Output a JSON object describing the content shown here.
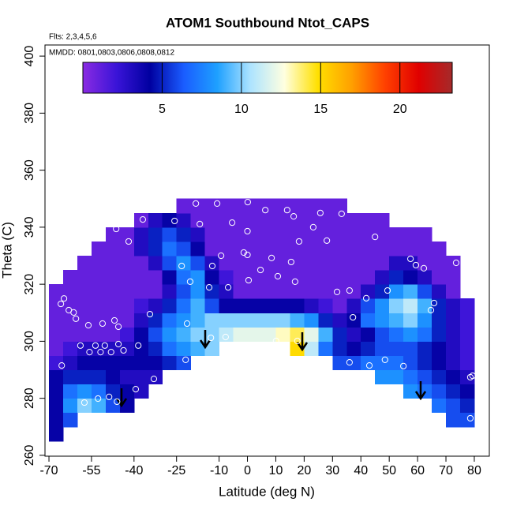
{
  "chart_data": {
    "type": "heatmap",
    "title": "ATOM1 Southbound Ntot_CAPS",
    "annotations": [
      "Flts: 2,3,4,5,6",
      "MMDD: 0801,0803,0806,0808,0812"
    ],
    "xlabel": "Latitude (deg N)",
    "ylabel": "Theta (C)",
    "xlim": [
      -71.4,
      85.3
    ],
    "ylim": [
      259.7,
      403.9
    ],
    "xticks": [
      -70,
      -55,
      -40,
      -25,
      -10,
      0,
      10,
      20,
      30,
      40,
      50,
      60,
      70,
      80
    ],
    "yticks": [
      260,
      280,
      300,
      320,
      340,
      360,
      380,
      400
    ],
    "x": [
      -67.5,
      -62.5,
      -57.5,
      -52.5,
      -47.5,
      -42.5,
      -37.5,
      -32.5,
      -27.5,
      -22.5,
      -17.5,
      -12.5,
      -7.5,
      -2.5,
      2.5,
      7.5,
      12.5,
      17.5,
      22.5,
      27.5,
      32.5,
      37.5,
      42.5,
      47.5,
      52.5,
      57.5,
      62.5,
      67.5,
      72.5,
      77.5
    ],
    "y": [
      267.5,
      272.5,
      277.5,
      282.5,
      287.5,
      292.5,
      297.5,
      302.5,
      307.5,
      312.5,
      317.5,
      322.5,
      327.5,
      332.5,
      337.5,
      342.5,
      347.5
    ],
    "z": [
      [
        4,
        null,
        null,
        null,
        null,
        null,
        null,
        null,
        null,
        null,
        null,
        null,
        null,
        null,
        null,
        null,
        null,
        null,
        null,
        null,
        null,
        null,
        null,
        null,
        null,
        null,
        null,
        null,
        null,
        null
      ],
      [
        4,
        6,
        null,
        null,
        null,
        null,
        null,
        null,
        null,
        null,
        null,
        null,
        null,
        null,
        null,
        null,
        null,
        null,
        null,
        null,
        null,
        null,
        null,
        null,
        null,
        null,
        null,
        null,
        6,
        6
      ],
      [
        4,
        8,
        10,
        9,
        6,
        4,
        null,
        null,
        null,
        null,
        null,
        null,
        null,
        null,
        null,
        null,
        null,
        null,
        null,
        null,
        null,
        null,
        null,
        null,
        null,
        null,
        null,
        7,
        6,
        5
      ],
      [
        4,
        7,
        8,
        7,
        5,
        4,
        3,
        null,
        null,
        null,
        null,
        null,
        null,
        null,
        null,
        null,
        null,
        null,
        null,
        null,
        null,
        null,
        null,
        null,
        null,
        8,
        7,
        6,
        5,
        4
      ],
      [
        4,
        5,
        5,
        5,
        4,
        3,
        3,
        3,
        null,
        null,
        null,
        null,
        null,
        null,
        null,
        null,
        null,
        null,
        null,
        null,
        null,
        null,
        null,
        8,
        8,
        7,
        6,
        5,
        4,
        3
      ],
      [
        2,
        3,
        4,
        4,
        4,
        4,
        4,
        4,
        5,
        6,
        null,
        null,
        null,
        null,
        null,
        null,
        null,
        null,
        null,
        null,
        6,
        6,
        7,
        7,
        7,
        6,
        5,
        4,
        3,
        2
      ],
      [
        1,
        2,
        3,
        3,
        3,
        3,
        4,
        5,
        7,
        8,
        9,
        10,
        null,
        null,
        null,
        null,
        null,
        15,
        11,
        7,
        5,
        4,
        5,
        6,
        6,
        6,
        5,
        4,
        3,
        2
      ],
      [
        1,
        1,
        1,
        1,
        1,
        2,
        4,
        6,
        8,
        9,
        10,
        10,
        11,
        12,
        12,
        12,
        13,
        14,
        12,
        9,
        5,
        3,
        4,
        6,
        7,
        8,
        7,
        5,
        3,
        2
      ],
      [
        1,
        1,
        1,
        1,
        1,
        1,
        3,
        5,
        7,
        8,
        9,
        10,
        10,
        10,
        10,
        10,
        10,
        9,
        8,
        5,
        3,
        4,
        7,
        8,
        9,
        10,
        8,
        5,
        3,
        2
      ],
      [
        1,
        1,
        1,
        1,
        1,
        1,
        2,
        3,
        5,
        7,
        9,
        6,
        4,
        4,
        4,
        4,
        4,
        4,
        3,
        2,
        1,
        3,
        6,
        8,
        10,
        11,
        9,
        5,
        3,
        2
      ],
      [
        1,
        1,
        1,
        1,
        1,
        1,
        1,
        1,
        3,
        6,
        8,
        5,
        3,
        1,
        1,
        1,
        1,
        1,
        1,
        1,
        1,
        1,
        3,
        5,
        8,
        9,
        6,
        3,
        1,
        null
      ],
      [
        null,
        1,
        1,
        1,
        1,
        1,
        1,
        1,
        4,
        7,
        8,
        4,
        2,
        1,
        1,
        1,
        1,
        1,
        1,
        1,
        1,
        1,
        1,
        3,
        5,
        4,
        3,
        1,
        1,
        null
      ],
      [
        null,
        null,
        1,
        1,
        1,
        1,
        1,
        3,
        6,
        8,
        6,
        3,
        1,
        1,
        1,
        1,
        1,
        1,
        1,
        1,
        1,
        1,
        1,
        1,
        3,
        3,
        1,
        1,
        1,
        null
      ],
      [
        null,
        null,
        null,
        1,
        1,
        1,
        3,
        5,
        7,
        6,
        4,
        1,
        1,
        1,
        1,
        1,
        1,
        1,
        1,
        1,
        1,
        1,
        1,
        1,
        1,
        1,
        1,
        1,
        null,
        null
      ],
      [
        null,
        null,
        null,
        null,
        1,
        1,
        3,
        5,
        6,
        5,
        3,
        1,
        1,
        1,
        1,
        1,
        1,
        1,
        1,
        1,
        1,
        1,
        1,
        1,
        1,
        1,
        1,
        null,
        null,
        null
      ],
      [
        null,
        null,
        null,
        null,
        null,
        null,
        1,
        3,
        4,
        3,
        1,
        1,
        1,
        1,
        1,
        1,
        1,
        1,
        1,
        1,
        1,
        1,
        1,
        1,
        null,
        null,
        null,
        null,
        null,
        null
      ],
      [
        null,
        null,
        null,
        null,
        null,
        null,
        null,
        null,
        null,
        1,
        1,
        1,
        1,
        1,
        1,
        1,
        1,
        1,
        1,
        1,
        1,
        null,
        null,
        null,
        null,
        null,
        null,
        null,
        null,
        null
      ]
    ],
    "colorbar": {
      "range": [
        0,
        23.3
      ],
      "ticks": [
        5,
        10,
        15,
        20
      ],
      "colors": [
        "#8a2be2",
        "#3a14d8",
        "#0000a0",
        "#1a5cff",
        "#1ea0ff",
        "#aee4ff",
        "#ffffe0",
        "#ffe000",
        "#ffa000",
        "#ff4000",
        "#e00000",
        "#a52a2a"
      ]
    },
    "points": {
      "color": "#ffffff",
      "x": [
        -3.8,
        -18.2,
        -10.7,
        0.1,
        -36.9,
        -25.7,
        -16.8,
        -5.4,
        6.3,
        14,
        16.3,
        25.7,
        33.2,
        -46.3,
        23.2,
        0,
        -41.9,
        18.2,
        28,
        45,
        -9.3,
        -1.3,
        0,
        8.5,
        15.4,
        57.5,
        -23.2,
        -12.4,
        4.6,
        59.4,
        62.2,
        73.6,
        10.7,
        16.8,
        0.4,
        -20.2,
        -13.5,
        -6.8,
        -64.7,
        -65.8,
        -63,
        -61.3,
        -60.5,
        -51.1,
        -56.1,
        -46.9,
        -45.5,
        -34.4,
        31.6,
        36,
        41.9,
        49.4,
        64.7,
        65.8,
        37.2,
        -21.3,
        -12.9,
        -7.7,
        10.1,
        17.6,
        -58.9,
        -53.6,
        -50.3,
        -45.5,
        -38.5,
        -55.7,
        -51.8,
        -48.1,
        -43.7,
        -65.5,
        -21.8,
        28.5,
        36,
        43,
        48.5,
        55,
        79.4,
        78.6,
        -33,
        -39.4,
        -46,
        -57.5,
        -52.7,
        -48.8,
        78.6
      ],
      "y": [
        351.9,
        348.3,
        348.3,
        348.8,
        342.7,
        342.2,
        341.1,
        341.6,
        346,
        346,
        343.8,
        345,
        344.7,
        339.4,
        340,
        338.6,
        335,
        335,
        335.3,
        336.6,
        330,
        331.1,
        330.3,
        329.2,
        327.8,
        328.9,
        326.4,
        326.4,
        325,
        326.7,
        325.6,
        327.5,
        322.8,
        320.9,
        321.4,
        320.9,
        318.9,
        318.9,
        315,
        313.1,
        310.9,
        310.1,
        307.9,
        306.2,
        305.6,
        307.3,
        305.1,
        309.5,
        317.3,
        317.8,
        315.1,
        317.8,
        310.9,
        313.4,
        308.4,
        306.2,
        301.2,
        301.5,
        300.1,
        300.1,
        298.5,
        298.5,
        298.5,
        299,
        298.5,
        296.2,
        296.2,
        296.2,
        296.8,
        291.5,
        293.5,
        292.9,
        292.6,
        291.5,
        293.5,
        291.3,
        287.9,
        287.4,
        286.8,
        283.2,
        278.8,
        278.5,
        279.9,
        280.5,
        273
      ]
    }
  }
}
